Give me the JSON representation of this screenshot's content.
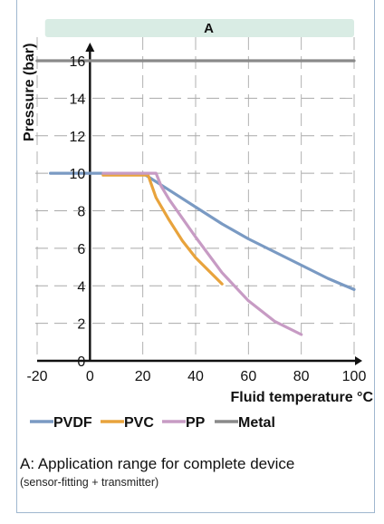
{
  "chart_data": {
    "type": "line",
    "range_band_label": "A",
    "ylabel": "Pressure (bar)",
    "xlabel": "Fluid temperature °C",
    "xlim": [
      -20,
      100
    ],
    "ylim": [
      0,
      16
    ],
    "x_ticks": [
      -20,
      0,
      20,
      40,
      60,
      80,
      100
    ],
    "y_ticks": [
      0,
      2,
      4,
      6,
      8,
      10,
      12,
      14,
      16
    ],
    "grid": true,
    "legend_position": "bottom",
    "series": [
      {
        "name": "PVDF",
        "color": "#7a9ac3",
        "x": [
          -15,
          20,
          30,
          40,
          50,
          60,
          70,
          80,
          90,
          100
        ],
        "y": [
          10,
          10,
          9.1,
          8.2,
          7.3,
          6.5,
          5.8,
          5.1,
          4.4,
          3.8
        ]
      },
      {
        "name": "PVC",
        "color": "#e8a33c",
        "x": [
          5,
          22,
          25,
          30,
          35,
          40,
          45,
          50
        ],
        "y": [
          9.9,
          9.9,
          8.7,
          7.5,
          6.4,
          5.5,
          4.8,
          4.1
        ]
      },
      {
        "name": "PP",
        "color": "#c79bc4",
        "x": [
          5,
          25,
          27,
          30,
          40,
          50,
          60,
          70,
          80
        ],
        "y": [
          10,
          10,
          9.3,
          8.6,
          6.6,
          4.7,
          3.2,
          2.1,
          1.4
        ]
      },
      {
        "name": "Metal",
        "color": "#8a8a8a",
        "x": [
          -20,
          100
        ],
        "y": [
          16,
          16
        ]
      }
    ]
  },
  "note": {
    "main": "A: Application range for complete device",
    "sub": "(sensor-fitting + transmitter)"
  }
}
